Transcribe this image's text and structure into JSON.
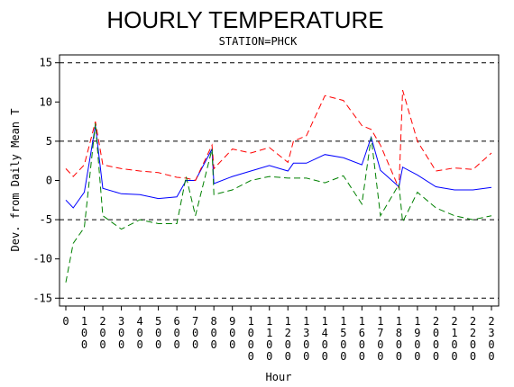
{
  "chart_data": {
    "type": "line",
    "title": "HOURLY TEMPERATURE",
    "subtitle": "STATION=PHCK",
    "xlabel": "Hour",
    "ylabel": "Dev. from Daily Mean T",
    "xlim": [
      0,
      2300
    ],
    "ylim": [
      -16,
      16
    ],
    "x_ticks": [
      "0",
      "100",
      "200",
      "300",
      "400",
      "500",
      "600",
      "700",
      "800",
      "900",
      "1000",
      "1100",
      "1200",
      "1300",
      "1400",
      "1500",
      "1600",
      "1700",
      "1800",
      "1900",
      "2000",
      "2100",
      "2200",
      "2300"
    ],
    "y_ticks": [
      "-15",
      "-10",
      "-5",
      "0",
      "5",
      "10",
      "15"
    ],
    "reference_lines": [
      -15,
      -5,
      5,
      15
    ],
    "grid": false,
    "series": [
      {
        "style": "solid",
        "color": "#0000ff",
        "x": [
          0,
          40,
          100,
          160,
          200,
          300,
          400,
          500,
          600,
          650,
          700,
          790,
          800,
          900,
          1000,
          1100,
          1200,
          1230,
          1300,
          1400,
          1500,
          1600,
          1650,
          1700,
          1800,
          1820,
          1900,
          2000,
          2100,
          2200,
          2300
        ],
        "y": [
          -2.5,
          -3.5,
          -1.5,
          7.0,
          -1.0,
          -1.7,
          -1.8,
          -2.3,
          -2.1,
          0.0,
          0.0,
          4.0,
          -0.4,
          0.5,
          1.2,
          1.9,
          1.2,
          2.2,
          2.2,
          3.3,
          2.9,
          2.0,
          5.5,
          1.3,
          -0.8,
          1.7,
          0.7,
          -0.8,
          -1.2,
          -1.2,
          -0.9
        ]
      },
      {
        "style": "dashed",
        "color": "#ff0000",
        "x": [
          0,
          40,
          100,
          160,
          200,
          300,
          400,
          500,
          600,
          650,
          700,
          790,
          800,
          900,
          1000,
          1100,
          1200,
          1230,
          1300,
          1400,
          1500,
          1600,
          1650,
          1700,
          1800,
          1820,
          1900,
          2000,
          2100,
          2200,
          2300
        ],
        "y": [
          1.5,
          0.5,
          2.0,
          7.5,
          2.0,
          1.5,
          1.2,
          1.0,
          0.4,
          0.3,
          0.0,
          4.5,
          1.5,
          4.0,
          3.5,
          4.2,
          2.3,
          5.0,
          5.7,
          10.8,
          10.2,
          7.0,
          6.5,
          4.5,
          -1.0,
          11.5,
          5.0,
          1.2,
          1.6,
          1.4,
          3.5
        ]
      },
      {
        "style": "dashed",
        "color": "#008000",
        "x": [
          0,
          40,
          100,
          160,
          200,
          300,
          400,
          500,
          600,
          650,
          700,
          790,
          800,
          900,
          1000,
          1100,
          1200,
          1230,
          1300,
          1400,
          1500,
          1600,
          1650,
          1700,
          1800,
          1820,
          1900,
          2000,
          2100,
          2200,
          2300
        ],
        "y": [
          -13.0,
          -8.0,
          -6.0,
          7.3,
          -4.5,
          -6.2,
          -5.0,
          -5.5,
          -5.5,
          0.5,
          -4.5,
          4.0,
          -1.8,
          -1.2,
          0.0,
          0.5,
          0.3,
          0.3,
          0.3,
          -0.3,
          0.6,
          -3.0,
          5.5,
          -4.5,
          -0.5,
          -5.3,
          -1.5,
          -3.5,
          -4.5,
          -5.0,
          -4.5
        ]
      }
    ]
  }
}
